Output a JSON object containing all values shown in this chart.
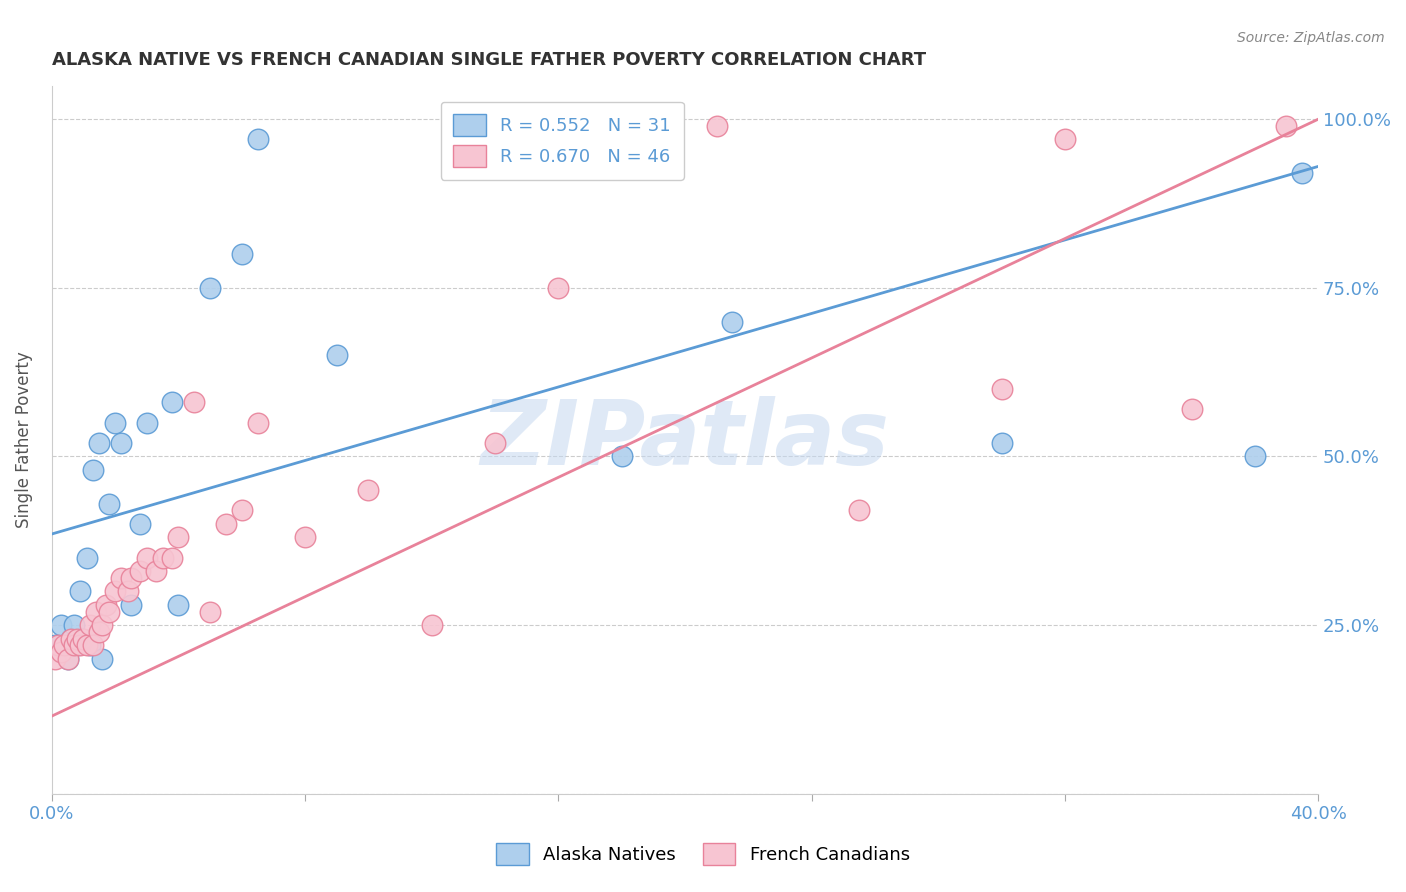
{
  "title": "ALASKA NATIVE VS FRENCH CANADIAN SINGLE FATHER POVERTY CORRELATION CHART",
  "source": "Source: ZipAtlas.com",
  "ylabel": "Single Father Poverty",
  "x_min": 0.0,
  "x_max": 0.4,
  "y_min": 0.0,
  "y_max": 1.05,
  "y_ticks": [
    0.0,
    0.25,
    0.5,
    0.75,
    1.0
  ],
  "y_tick_labels": [
    "",
    "25.0%",
    "50.0%",
    "75.0%",
    "100.0%"
  ],
  "alaska_R": 0.552,
  "alaska_N": 31,
  "french_R": 0.67,
  "french_N": 46,
  "alaska_color": "#aecfed",
  "alaska_color_edge": "#5b9bd5",
  "french_color": "#f7c5d2",
  "french_color_edge": "#e8829a",
  "alaska_line_color": "#5b9bd5",
  "french_line_color": "#e8829a",
  "watermark": "ZIPatlas",
  "alaska_line_x0": 0.0,
  "alaska_line_y0": 0.385,
  "alaska_line_x1": 0.4,
  "alaska_line_y1": 0.93,
  "french_line_x0": 0.0,
  "french_line_y0": 0.115,
  "french_line_x1": 0.4,
  "french_line_y1": 1.0,
  "alaska_x": [
    0.001,
    0.003,
    0.004,
    0.005,
    0.006,
    0.007,
    0.008,
    0.009,
    0.01,
    0.011,
    0.012,
    0.013,
    0.015,
    0.016,
    0.018,
    0.02,
    0.022,
    0.025,
    0.028,
    0.03,
    0.038,
    0.04,
    0.05,
    0.06,
    0.065,
    0.09,
    0.18,
    0.215,
    0.3,
    0.38,
    0.395
  ],
  "alaska_y": [
    0.22,
    0.25,
    0.22,
    0.2,
    0.23,
    0.25,
    0.22,
    0.3,
    0.23,
    0.35,
    0.22,
    0.48,
    0.52,
    0.2,
    0.43,
    0.55,
    0.52,
    0.28,
    0.4,
    0.55,
    0.58,
    0.28,
    0.75,
    0.8,
    0.97,
    0.65,
    0.5,
    0.7,
    0.52,
    0.5,
    0.92
  ],
  "french_x": [
    0.001,
    0.002,
    0.003,
    0.004,
    0.005,
    0.006,
    0.007,
    0.008,
    0.009,
    0.01,
    0.011,
    0.012,
    0.013,
    0.014,
    0.015,
    0.016,
    0.017,
    0.018,
    0.02,
    0.022,
    0.024,
    0.025,
    0.028,
    0.03,
    0.033,
    0.035,
    0.038,
    0.04,
    0.045,
    0.05,
    0.055,
    0.06,
    0.065,
    0.08,
    0.1,
    0.12,
    0.14,
    0.16,
    0.175,
    0.19,
    0.21,
    0.255,
    0.3,
    0.32,
    0.36,
    0.39
  ],
  "french_y": [
    0.2,
    0.22,
    0.21,
    0.22,
    0.2,
    0.23,
    0.22,
    0.23,
    0.22,
    0.23,
    0.22,
    0.25,
    0.22,
    0.27,
    0.24,
    0.25,
    0.28,
    0.27,
    0.3,
    0.32,
    0.3,
    0.32,
    0.33,
    0.35,
    0.33,
    0.35,
    0.35,
    0.38,
    0.58,
    0.27,
    0.4,
    0.42,
    0.55,
    0.38,
    0.45,
    0.25,
    0.52,
    0.75,
    0.99,
    0.99,
    0.99,
    0.42,
    0.6,
    0.97,
    0.57,
    0.99
  ]
}
